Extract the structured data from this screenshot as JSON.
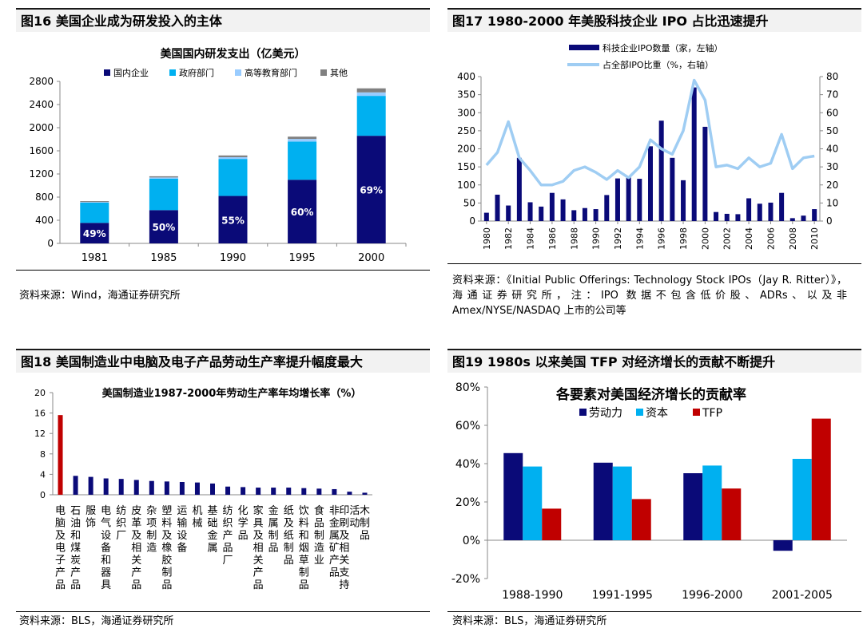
{
  "colors": {
    "navy": "#0a0a78",
    "cyan": "#00b0f0",
    "lightblue": "#99ccff",
    "gray": "#808080",
    "red": "#c00000",
    "line_blue": "#9fcdf3"
  },
  "panels": {
    "p16": {
      "title": "图16 美国企业成为研发投入的主体",
      "source": "资料来源：Wind，海通证券研究所"
    },
    "p17": {
      "title": "图17 1980-2000 年美股科技企业 IPO 占比迅速提升",
      "source": "资料来源：《Initial Public Offerings: Technology Stock IPOs（Jay R. Ritter）》，海通证券研究所，注：IPO 数据不包含低价股、ADRs、以及非Amex/NYSE/NASDAQ 上市的公司等"
    },
    "p18": {
      "title": "图18 美国制造业中电脑及电子产品劳动生产率提升幅度最大",
      "source": "资料来源：BLS，海通证券研究所"
    },
    "p19": {
      "title": "图19 1980s 以来美国 TFP 对经济增长的贡献不断提升",
      "source": "资料来源：BLS，海通证券研究所"
    }
  },
  "chart_data": [
    {
      "id": "rd",
      "type": "bar",
      "stacked": true,
      "title": "美国国内研发支出（亿美元）",
      "categories": [
        "1981",
        "1985",
        "1990",
        "1995",
        "2000"
      ],
      "series": [
        {
          "name": "国内企业",
          "color": "navy",
          "values": [
            355,
            575,
            820,
            1100,
            1860
          ]
        },
        {
          "name": "政府部门",
          "color": "cyan",
          "values": [
            350,
            545,
            640,
            660,
            690
          ]
        },
        {
          "name": "高等教育部门",
          "color": "lightblue",
          "values": [
            10,
            20,
            30,
            45,
            60
          ]
        },
        {
          "name": "其他",
          "color": "gray",
          "values": [
            15,
            20,
            30,
            40,
            70
          ]
        }
      ],
      "data_labels": [
        "49%",
        "50%",
        "55%",
        "60%",
        "69%"
      ],
      "yticks": [
        "0",
        "400",
        "800",
        "1200",
        "1600",
        "2000",
        "2400",
        "2800"
      ],
      "ylim": [
        0,
        2800
      ],
      "legend": "top"
    },
    {
      "id": "ipo",
      "type": "bar",
      "combo": "bar+line",
      "series": [
        {
          "name": "科技企业IPO数量（家，左轴）",
          "type": "bar",
          "axis": "left",
          "color": "navy",
          "x": [
            1980,
            1981,
            1982,
            1983,
            1984,
            1985,
            1986,
            1987,
            1988,
            1989,
            1990,
            1991,
            1992,
            1993,
            1994,
            1995,
            1996,
            1997,
            1998,
            1999,
            2000,
            2001,
            2002,
            2003,
            2004,
            2005,
            2006,
            2007,
            2008,
            2009,
            2010
          ],
          "values": [
            23,
            73,
            43,
            175,
            52,
            40,
            78,
            60,
            30,
            36,
            33,
            72,
            118,
            122,
            117,
            207,
            278,
            175,
            113,
            370,
            261,
            25,
            20,
            19,
            63,
            48,
            51,
            78,
            8,
            15,
            33
          ]
        },
        {
          "name": "占全部IPO比重（%，右轴）",
          "type": "line",
          "axis": "right",
          "color": "line_blue",
          "x": [
            1980,
            1981,
            1982,
            1983,
            1984,
            1985,
            1986,
            1987,
            1988,
            1989,
            1990,
            1991,
            1992,
            1993,
            1994,
            1995,
            1996,
            1997,
            1998,
            1999,
            2000,
            2001,
            2002,
            2003,
            2004,
            2005,
            2006,
            2007,
            2008,
            2009,
            2010
          ],
          "values": [
            31,
            38,
            55,
            35,
            28,
            20,
            20,
            22,
            28,
            30,
            27,
            23,
            28,
            24,
            30,
            45,
            40,
            37,
            50,
            78,
            67,
            30,
            31,
            29,
            35,
            30,
            32,
            48,
            29,
            35,
            36
          ]
        }
      ],
      "xticks": [
        "1980",
        "1982",
        "1984",
        "1986",
        "1988",
        "1990",
        "1992",
        "1994",
        "1996",
        "1998",
        "2000",
        "2002",
        "2004",
        "2006",
        "2008",
        "2010"
      ],
      "yticks_left": [
        "0",
        "50",
        "100",
        "150",
        "200",
        "250",
        "300",
        "350",
        "400"
      ],
      "yticks_right": [
        "0",
        "10",
        "20",
        "30",
        "40",
        "50",
        "60",
        "70",
        "80"
      ],
      "ylim_left": [
        0,
        400
      ],
      "ylim_right": [
        0,
        80
      ],
      "legend": "top"
    },
    {
      "id": "prod",
      "type": "bar",
      "title": "美国制造业1987-2000年劳动生产率年均增长率（%）",
      "categories": [
        "电脑及电子产品",
        "石油和煤炭产品",
        "服饰",
        "电气设备和器具",
        "纺织厂",
        "皮革及相关产品",
        "杂项制造",
        "塑料及橡胶制品",
        "运输设备",
        "机械",
        "基础金属",
        "纺织产品厂",
        "化学品",
        "家具及相关产品",
        "金属制品",
        "纸及纸制品",
        "饮料和烟草制品",
        "食品制造业",
        "非金属矿产品",
        "印刷及相关支持活动",
        "木制品"
      ],
      "values": [
        15.6,
        3.7,
        3.5,
        3.2,
        3.1,
        2.9,
        2.7,
        2.6,
        2.5,
        2.4,
        2.2,
        1.6,
        1.5,
        1.4,
        1.4,
        1.4,
        1.3,
        1.2,
        1.1,
        0.6,
        0.4
      ],
      "colors": [
        "red",
        "navy",
        "navy",
        "navy",
        "navy",
        "navy",
        "navy",
        "navy",
        "navy",
        "navy",
        "navy",
        "navy",
        "navy",
        "navy",
        "navy",
        "navy",
        "navy",
        "navy",
        "navy",
        "navy",
        "navy"
      ],
      "yticks": [
        "0",
        "4",
        "8",
        "12",
        "16",
        "20"
      ],
      "ylim": [
        0,
        20
      ]
    },
    {
      "id": "tfp",
      "type": "bar",
      "title": "各要素对美国经济增长的贡献率",
      "categories": [
        "1988-1990",
        "1991-1995",
        "1996-2000",
        "2001-2005"
      ],
      "series": [
        {
          "name": "劳动力",
          "color": "navy",
          "values": [
            45.5,
            40.5,
            35,
            -5.5
          ]
        },
        {
          "name": "资本",
          "color": "cyan",
          "values": [
            38.5,
            38.5,
            39,
            42.5
          ]
        },
        {
          "name": "TFP",
          "color": "red",
          "values": [
            16.5,
            21.5,
            27,
            63.5
          ]
        }
      ],
      "yticks": [
        "-20%",
        "0%",
        "20%",
        "40%",
        "60%",
        "80%"
      ],
      "ylim": [
        -20,
        80
      ],
      "legend": "top"
    }
  ]
}
